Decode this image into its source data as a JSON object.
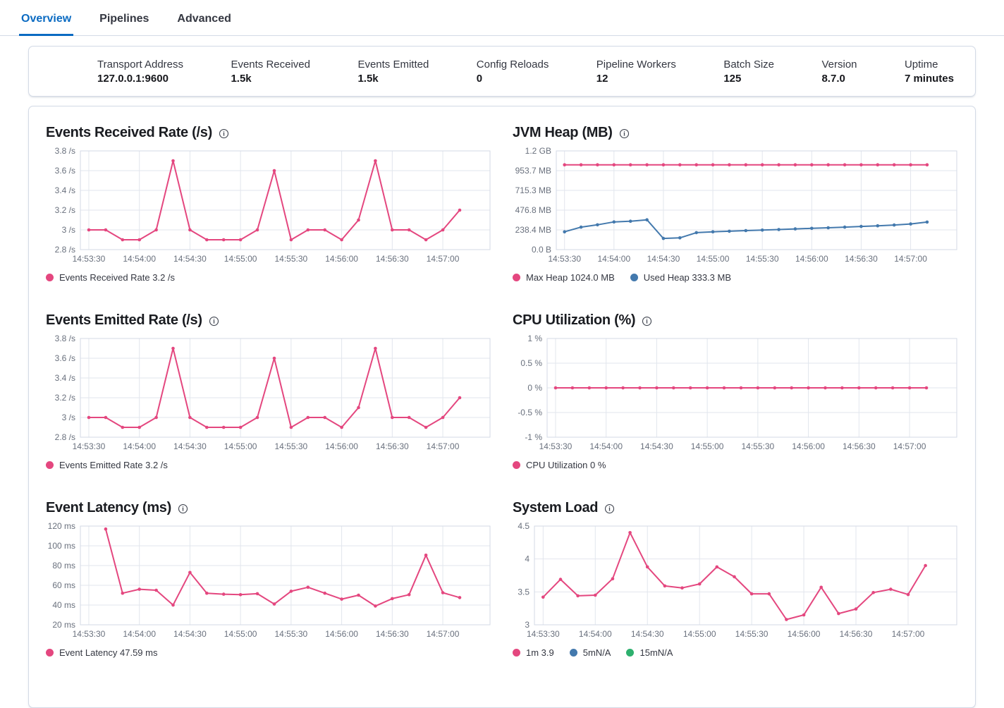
{
  "tabs": [
    {
      "label": "Overview",
      "active": true
    },
    {
      "label": "Pipelines",
      "active": false
    },
    {
      "label": "Advanced",
      "active": false
    }
  ],
  "stats": [
    {
      "label": "Transport Address",
      "value": "127.0.0.1:9600"
    },
    {
      "label": "Events Received",
      "value": "1.5k"
    },
    {
      "label": "Events Emitted",
      "value": "1.5k"
    },
    {
      "label": "Config Reloads",
      "value": "0"
    },
    {
      "label": "Pipeline Workers",
      "value": "12"
    },
    {
      "label": "Batch Size",
      "value": "125"
    },
    {
      "label": "Version",
      "value": "8.7.0"
    },
    {
      "label": "Uptime",
      "value": "7 minutes"
    }
  ],
  "colors": {
    "pink": "#e4477f",
    "blue": "#4379ad",
    "green": "#2eb06e",
    "tab_active": "#0b6bc2",
    "grid": "#e2e6ed",
    "axis_border": "#d3dae6",
    "axis_text": "#69707d"
  },
  "chart_data": [
    {
      "type": "line",
      "title": "Events Received Rate (/s)",
      "y_domain": [
        2.8,
        3.8
      ],
      "y_ticks": [
        {
          "label": "3.8 /s",
          "value": 3.8
        },
        {
          "label": "3.6 /s",
          "value": 3.6
        },
        {
          "label": "3.4 /s",
          "value": 3.4
        },
        {
          "label": "3.2 /s",
          "value": 3.2
        },
        {
          "label": "3 /s",
          "value": 3.0
        },
        {
          "label": "2.8 /s",
          "value": 2.8
        }
      ],
      "x_tick_labels": [
        "14:53:30",
        "14:54:00",
        "14:54:30",
        "14:55:00",
        "14:55:30",
        "14:56:00",
        "14:56:30",
        "14:57:00"
      ],
      "x_tick_seconds": [
        0,
        30,
        60,
        90,
        120,
        150,
        180,
        210
      ],
      "x_domain_seconds": [
        -5,
        238
      ],
      "series": [
        {
          "name": "Events Received Rate",
          "color_key": "pink",
          "start_second": 0,
          "interval_seconds": 10,
          "values": [
            3,
            3,
            2.9,
            2.9,
            3,
            3.7,
            3,
            2.9,
            2.9,
            2.9,
            3,
            3.6,
            2.9,
            3,
            3,
            2.9,
            3.1,
            3.7,
            3,
            3,
            2.9,
            3,
            3.2
          ]
        }
      ],
      "legend": [
        {
          "color_key": "pink",
          "label": "Events Received Rate 3.2 /s"
        }
      ]
    },
    {
      "type": "line",
      "title": "JVM Heap (MB)",
      "y_domain": [
        0,
        1192
      ],
      "y_ticks": [
        {
          "label": "1.2 GB",
          "value": 1192
        },
        {
          "label": "953.7 MB",
          "value": 953.7
        },
        {
          "label": "715.3 MB",
          "value": 715.3
        },
        {
          "label": "476.8 MB",
          "value": 476.8
        },
        {
          "label": "238.4 MB",
          "value": 238.4
        },
        {
          "label": "0.0 B",
          "value": 0
        }
      ],
      "x_tick_labels": [
        "14:53:30",
        "14:54:00",
        "14:54:30",
        "14:55:00",
        "14:55:30",
        "14:56:00",
        "14:56:30",
        "14:57:00"
      ],
      "x_tick_seconds": [
        0,
        30,
        60,
        90,
        120,
        150,
        180,
        210
      ],
      "x_domain_seconds": [
        -5,
        238
      ],
      "series": [
        {
          "name": "Max Heap",
          "color_key": "pink",
          "start_second": 0,
          "interval_seconds": 10,
          "values": [
            1024,
            1024,
            1024,
            1024,
            1024,
            1024,
            1024,
            1024,
            1024,
            1024,
            1024,
            1024,
            1024,
            1024,
            1024,
            1024,
            1024,
            1024,
            1024,
            1024,
            1024,
            1024,
            1024
          ]
        },
        {
          "name": "Used Heap",
          "color_key": "blue",
          "start_second": 0,
          "interval_seconds": 10,
          "values": [
            215,
            272,
            300,
            335,
            343,
            360,
            135,
            142,
            205,
            215,
            222,
            230,
            236,
            243,
            250,
            257,
            264,
            272,
            280,
            288,
            297,
            310,
            333.3
          ]
        }
      ],
      "legend": [
        {
          "color_key": "pink",
          "label": "Max Heap 1024.0 MB"
        },
        {
          "color_key": "blue",
          "label": "Used Heap 333.3 MB"
        }
      ]
    },
    {
      "type": "line",
      "title": "Events Emitted Rate (/s)",
      "y_domain": [
        2.8,
        3.8
      ],
      "y_ticks": [
        {
          "label": "3.8 /s",
          "value": 3.8
        },
        {
          "label": "3.6 /s",
          "value": 3.6
        },
        {
          "label": "3.4 /s",
          "value": 3.4
        },
        {
          "label": "3.2 /s",
          "value": 3.2
        },
        {
          "label": "3 /s",
          "value": 3.0
        },
        {
          "label": "2.8 /s",
          "value": 2.8
        }
      ],
      "x_tick_labels": [
        "14:53:30",
        "14:54:00",
        "14:54:30",
        "14:55:00",
        "14:55:30",
        "14:56:00",
        "14:56:30",
        "14:57:00"
      ],
      "x_tick_seconds": [
        0,
        30,
        60,
        90,
        120,
        150,
        180,
        210
      ],
      "x_domain_seconds": [
        -5,
        238
      ],
      "series": [
        {
          "name": "Events Emitted Rate",
          "color_key": "pink",
          "start_second": 0,
          "interval_seconds": 10,
          "values": [
            3,
            3,
            2.9,
            2.9,
            3,
            3.7,
            3,
            2.9,
            2.9,
            2.9,
            3,
            3.6,
            2.9,
            3,
            3,
            2.9,
            3.1,
            3.7,
            3,
            3,
            2.9,
            3,
            3.2
          ]
        }
      ],
      "legend": [
        {
          "color_key": "pink",
          "label": "Events Emitted Rate 3.2 /s"
        }
      ]
    },
    {
      "type": "line",
      "title": "CPU Utilization (%)",
      "y_domain": [
        -1,
        1
      ],
      "y_ticks": [
        {
          "label": "1 %",
          "value": 1
        },
        {
          "label": "0.5 %",
          "value": 0.5
        },
        {
          "label": "0 %",
          "value": 0
        },
        {
          "label": "-0.5 %",
          "value": -0.5
        },
        {
          "label": "-1 %",
          "value": -1
        }
      ],
      "x_tick_labels": [
        "14:53:30",
        "14:54:00",
        "14:54:30",
        "14:55:00",
        "14:55:30",
        "14:56:00",
        "14:56:30",
        "14:57:00"
      ],
      "x_tick_seconds": [
        0,
        30,
        60,
        90,
        120,
        150,
        180,
        210
      ],
      "x_domain_seconds": [
        -5,
        238
      ],
      "series": [
        {
          "name": "CPU Utilization",
          "color_key": "pink",
          "start_second": 0,
          "interval_seconds": 10,
          "values": [
            0,
            0,
            0,
            0,
            0,
            0,
            0,
            0,
            0,
            0,
            0,
            0,
            0,
            0,
            0,
            0,
            0,
            0,
            0,
            0,
            0,
            0,
            0
          ]
        }
      ],
      "legend": [
        {
          "color_key": "pink",
          "label": "CPU Utilization 0 %"
        }
      ]
    },
    {
      "type": "line",
      "title": "Event Latency (ms)",
      "y_domain": [
        20,
        120
      ],
      "y_ticks": [
        {
          "label": "120 ms",
          "value": 120
        },
        {
          "label": "100 ms",
          "value": 100
        },
        {
          "label": "80 ms",
          "value": 80
        },
        {
          "label": "60 ms",
          "value": 60
        },
        {
          "label": "40 ms",
          "value": 40
        },
        {
          "label": "20 ms",
          "value": 20
        }
      ],
      "x_tick_labels": [
        "14:53:30",
        "14:54:00",
        "14:54:30",
        "14:55:00",
        "14:55:30",
        "14:56:00",
        "14:56:30",
        "14:57:00"
      ],
      "x_tick_seconds": [
        0,
        30,
        60,
        90,
        120,
        150,
        180,
        210
      ],
      "x_domain_seconds": [
        -5,
        238
      ],
      "series": [
        {
          "name": "Event Latency",
          "color_key": "pink",
          "start_second": 10,
          "interval_seconds": 10,
          "values": [
            117,
            52,
            56,
            55,
            40,
            73,
            52,
            51,
            50.5,
            51.5,
            41,
            54,
            58,
            52,
            46,
            50,
            39,
            46.5,
            50.5,
            90.5,
            52.5,
            47.59
          ]
        }
      ],
      "legend": [
        {
          "color_key": "pink",
          "label": "Event Latency 47.59 ms"
        }
      ]
    },
    {
      "type": "line",
      "title": "System Load",
      "y_domain": [
        3,
        4.5
      ],
      "y_ticks": [
        {
          "label": "4.5",
          "value": 4.5
        },
        {
          "label": "4",
          "value": 4
        },
        {
          "label": "3.5",
          "value": 3.5
        },
        {
          "label": "3",
          "value": 3
        }
      ],
      "x_tick_labels": [
        "14:53:30",
        "14:54:00",
        "14:54:30",
        "14:55:00",
        "14:55:30",
        "14:56:00",
        "14:56:30",
        "14:57:00"
      ],
      "x_tick_seconds": [
        0,
        30,
        60,
        90,
        120,
        150,
        180,
        210
      ],
      "x_domain_seconds": [
        -5,
        238
      ],
      "series": [
        {
          "name": "1m",
          "color_key": "pink",
          "start_second": 0,
          "interval_seconds": 10,
          "values": [
            3.42,
            3.69,
            3.44,
            3.45,
            3.7,
            4.4,
            3.88,
            3.59,
            3.56,
            3.62,
            3.88,
            3.73,
            3.47,
            3.47,
            3.08,
            3.15,
            3.57,
            3.17,
            3.24,
            3.49,
            3.54,
            3.46,
            3.9
          ]
        }
      ],
      "legend": [
        {
          "color_key": "pink",
          "label": "1m 3.9"
        },
        {
          "color_key": "blue",
          "label": "5mN/A"
        },
        {
          "color_key": "green",
          "label": "15mN/A"
        }
      ]
    }
  ]
}
